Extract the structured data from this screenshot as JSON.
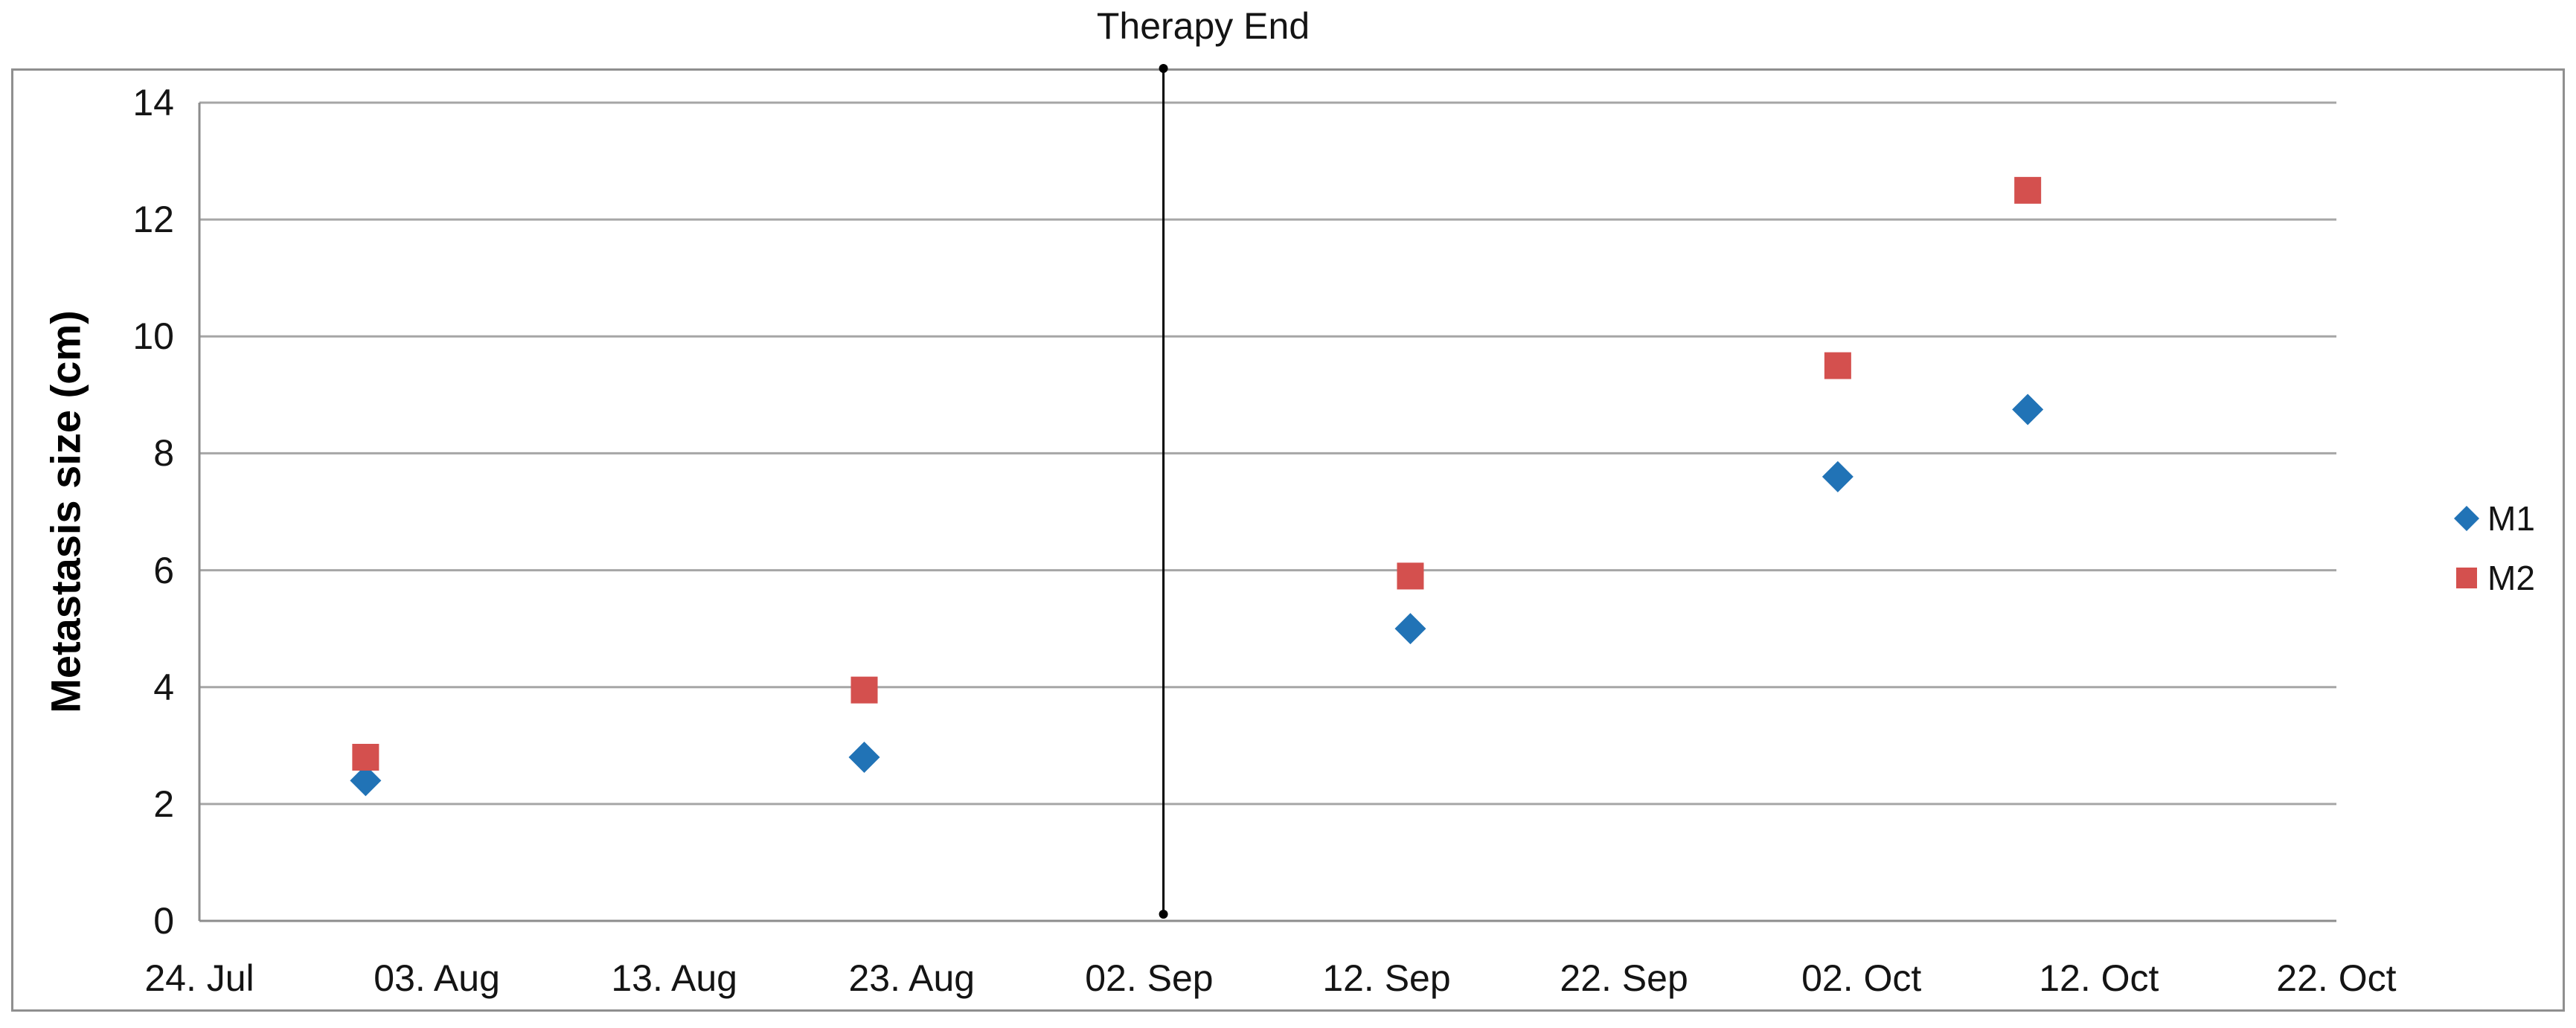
{
  "chart_data": {
    "type": "scatter",
    "title": "",
    "annotation": {
      "label": "Therapy End",
      "day_offset_from_start": 40.6
    },
    "y_axis": {
      "title": "Metastasis size (cm)",
      "min": 0,
      "max": 14,
      "major_unit": 2,
      "ticks": [
        "0",
        "2",
        "4",
        "6",
        "8",
        "10",
        "12",
        "14"
      ],
      "gridlines": true
    },
    "x_axis": {
      "type": "date",
      "start": "24. Jul",
      "end": "22. Oct",
      "span_days": 90,
      "tick_interval_days": 10,
      "ticks": [
        "24. Jul",
        "03. Aug",
        "13. Aug",
        "23. Aug",
        "02. Sep",
        "12. Sep",
        "22. Sep",
        "02. Oct",
        "12. Oct",
        "22. Oct"
      ]
    },
    "legend": {
      "position": "right"
    },
    "series": [
      {
        "name": "M1",
        "marker": "diamond",
        "color": "#2173B6",
        "points": [
          {
            "date": "31. Jul",
            "day": 7,
            "value": 2.4
          },
          {
            "date": "21. Aug",
            "day": 28,
            "value": 2.8
          },
          {
            "date": "13. Sep",
            "day": 51,
            "value": 5.0
          },
          {
            "date": "01. Oct",
            "day": 69,
            "value": 7.6
          },
          {
            "date": "09. Oct",
            "day": 77,
            "value": 8.75
          }
        ]
      },
      {
        "name": "M2",
        "marker": "square",
        "color": "#D4504E",
        "points": [
          {
            "date": "31. Jul",
            "day": 7,
            "value": 2.8
          },
          {
            "date": "21. Aug",
            "day": 28,
            "value": 3.95
          },
          {
            "date": "13. Sep",
            "day": 51,
            "value": 5.9
          },
          {
            "date": "01. Oct",
            "day": 69,
            "value": 9.5
          },
          {
            "date": "09. Oct",
            "day": 77,
            "value": 12.5
          }
        ]
      }
    ]
  },
  "colors": {
    "gridline": "#A6A6A6",
    "axis_line": "#8C8C8C",
    "chart_border": "#8F8F8F",
    "annotation_line": "#000000",
    "text": "#141414",
    "m1_blue": "#2173B6",
    "m2_red": "#D4504E"
  }
}
